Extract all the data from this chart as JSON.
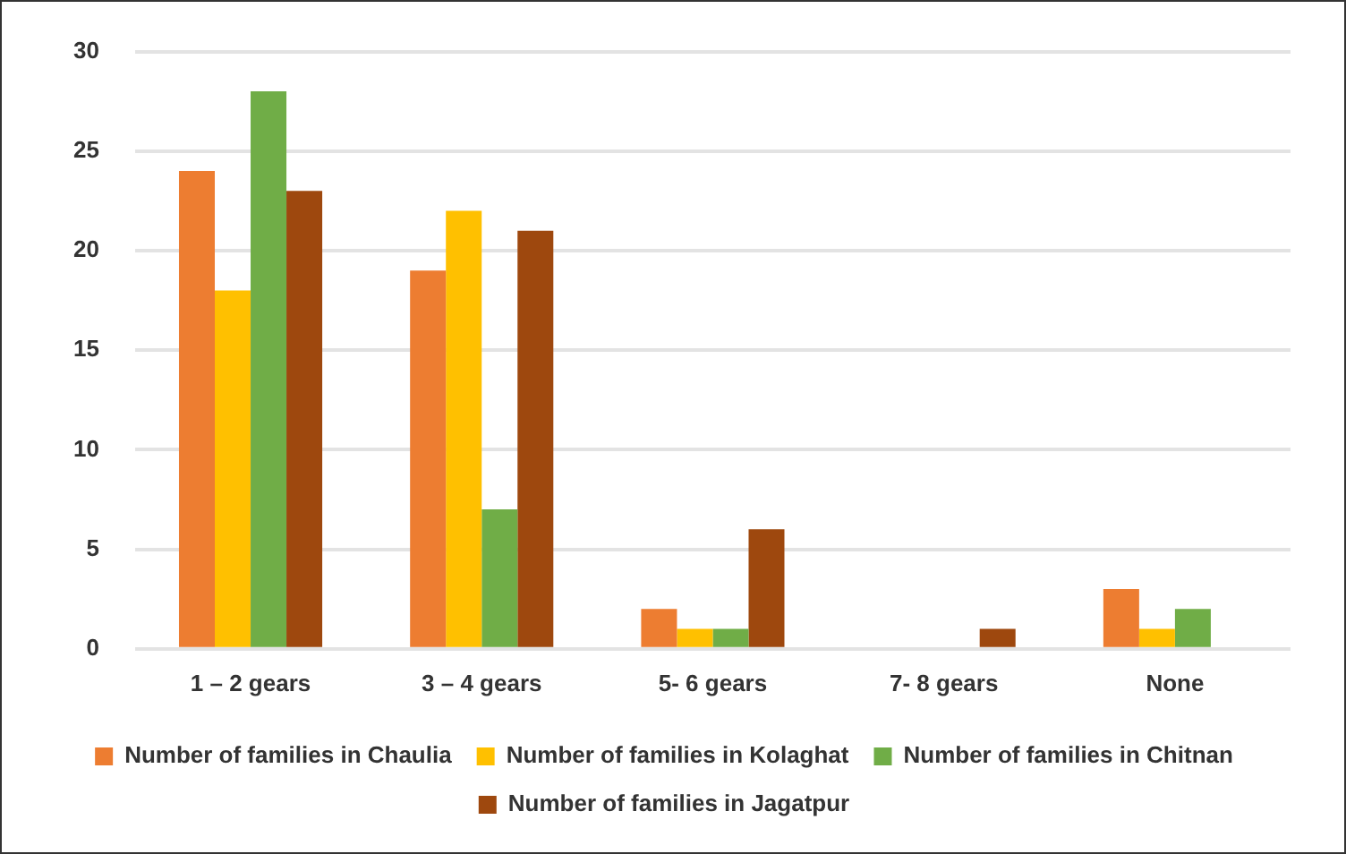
{
  "chart_data": {
    "type": "bar",
    "categories": [
      "1 – 2 gears",
      "3 – 4 gears",
      "5- 6 gears",
      "7- 8 gears",
      "None"
    ],
    "series": [
      {
        "name": "Number of families in Chaulia",
        "color": "#ed7d31",
        "values": [
          24,
          19,
          2,
          0,
          3
        ]
      },
      {
        "name": "Number of families in Kolaghat",
        "color": "#ffc000",
        "values": [
          18,
          22,
          1,
          0,
          1
        ]
      },
      {
        "name": "Number of families in Chitnan",
        "color": "#70ad47",
        "values": [
          28,
          7,
          1,
          0,
          2
        ]
      },
      {
        "name": "Number of families in Jagatpur",
        "color": "#9e480e",
        "values": [
          23,
          21,
          6,
          1,
          0
        ]
      }
    ],
    "ylim": [
      0,
      30
    ],
    "yticks": [
      0,
      5,
      10,
      15,
      20,
      25,
      30
    ],
    "grid": "y",
    "legend": "bottom"
  }
}
